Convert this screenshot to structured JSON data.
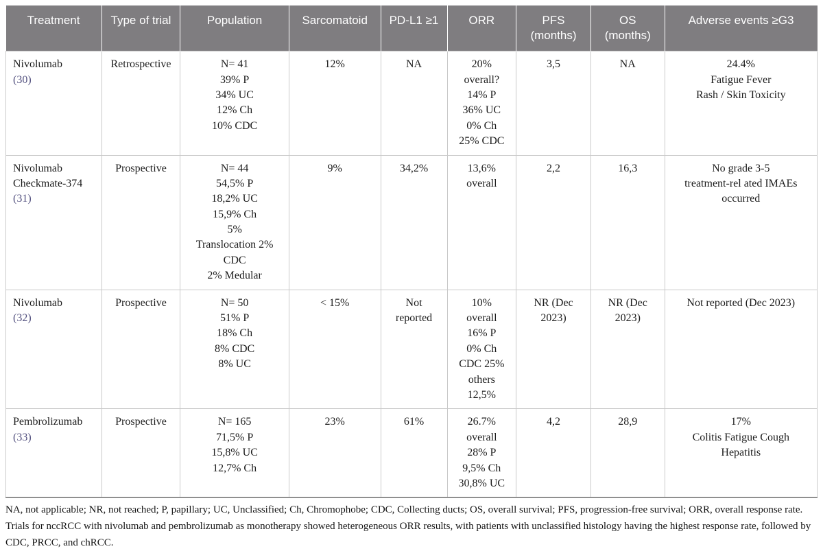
{
  "colors": {
    "header_bg": "#7f7d80",
    "header_text": "#ffffff",
    "body_text": "#1c1c1c",
    "citation_link": "#53517f",
    "cell_border": "#c9c9c9",
    "table_bottom_rule": "#8f8f8f"
  },
  "table": {
    "columns": [
      {
        "id": "treatment",
        "label": "Treatment"
      },
      {
        "id": "trial_type",
        "label": "Type of trial"
      },
      {
        "id": "population",
        "label": "Population"
      },
      {
        "id": "sarcomatoid",
        "label": "Sarcomatoid"
      },
      {
        "id": "pdl1",
        "label": "PD-L1 ≥1"
      },
      {
        "id": "orr",
        "label": "ORR"
      },
      {
        "id": "pfs",
        "label": "PFS (months)"
      },
      {
        "id": "os",
        "label": "OS (months)"
      },
      {
        "id": "adverse",
        "label": "Adverse events ≥G3"
      }
    ],
    "rows": [
      {
        "treatment": {
          "lines": [
            "Nivolumab"
          ],
          "citation": "(30)"
        },
        "trial_type": [
          "Retrospective"
        ],
        "population": [
          "N= 41",
          "39% P",
          "34% UC",
          "12% Ch",
          "10% CDC"
        ],
        "sarcomatoid": [
          "12%"
        ],
        "pdl1": [
          "NA"
        ],
        "orr": [
          "20%",
          "overall?",
          "14% P",
          "36% UC",
          "0% Ch",
          "25% CDC"
        ],
        "pfs": [
          "3,5"
        ],
        "os": [
          "NA"
        ],
        "adverse": [
          "24.4%",
          "Fatigue Fever",
          "Rash / Skin Toxicity"
        ]
      },
      {
        "treatment": {
          "lines": [
            "Nivolumab",
            "Checkmate-374"
          ],
          "citation": "(31)"
        },
        "trial_type": [
          "Prospective"
        ],
        "population": [
          "N= 44",
          "54,5% P",
          "18,2% UC",
          "15,9% Ch",
          "5%",
          "Translocation 2%",
          "CDC",
          "2% Medular"
        ],
        "sarcomatoid": [
          "9%"
        ],
        "pdl1": [
          "34,2%"
        ],
        "orr": [
          "13,6%",
          "overall"
        ],
        "pfs": [
          "2,2"
        ],
        "os": [
          "16,3"
        ],
        "adverse": [
          "No grade 3-5",
          "treatment-rel ated IMAEs",
          "occurred"
        ]
      },
      {
        "treatment": {
          "lines": [
            "Nivolumab"
          ],
          "citation": "(32)"
        },
        "trial_type": [
          "Prospective"
        ],
        "population": [
          "N= 50",
          "51% P",
          "18% Ch",
          "8% CDC",
          "8% UC"
        ],
        "sarcomatoid": [
          "< 15%"
        ],
        "pdl1": [
          "Not",
          "reported"
        ],
        "orr": [
          "10%",
          "overall",
          "16% P",
          "0% Ch",
          "CDC 25%",
          "others",
          "12,5%"
        ],
        "pfs": [
          "NR (Dec",
          "2023)"
        ],
        "os": [
          "NR (Dec",
          "2023)"
        ],
        "adverse": [
          "Not reported (Dec 2023)"
        ]
      },
      {
        "treatment": {
          "lines": [
            "Pembrolizumab"
          ],
          "citation": "(33)"
        },
        "trial_type": [
          "Prospective"
        ],
        "population": [
          "N= 165",
          "71,5% P",
          "15,8% UC",
          "12,7% Ch"
        ],
        "sarcomatoid": [
          "23%"
        ],
        "pdl1": [
          "61%"
        ],
        "orr": [
          "26.7%",
          "overall",
          "28% P",
          "9,5% Ch",
          "30,8% UC"
        ],
        "pfs": [
          "4,2"
        ],
        "os": [
          "28,9"
        ],
        "adverse": [
          "17%",
          "Colitis Fatigue Cough",
          "Hepatitis"
        ]
      }
    ]
  },
  "footnotes": {
    "abbreviations": "NA, not applicable; NR, not reached; P, papillary; UC, Unclassified; Ch, Chromophobe; CDC, Collecting ducts; OS, overall survival; PFS, progression-free survival; ORR, overall response rate.",
    "summary": "Trials for nccRCC with nivolumab and pembrolizumab as monotherapy showed heterogeneous ORR results, with patients with unclassified histology having the highest response rate, followed by CDC, PRCC, and chRCC."
  }
}
